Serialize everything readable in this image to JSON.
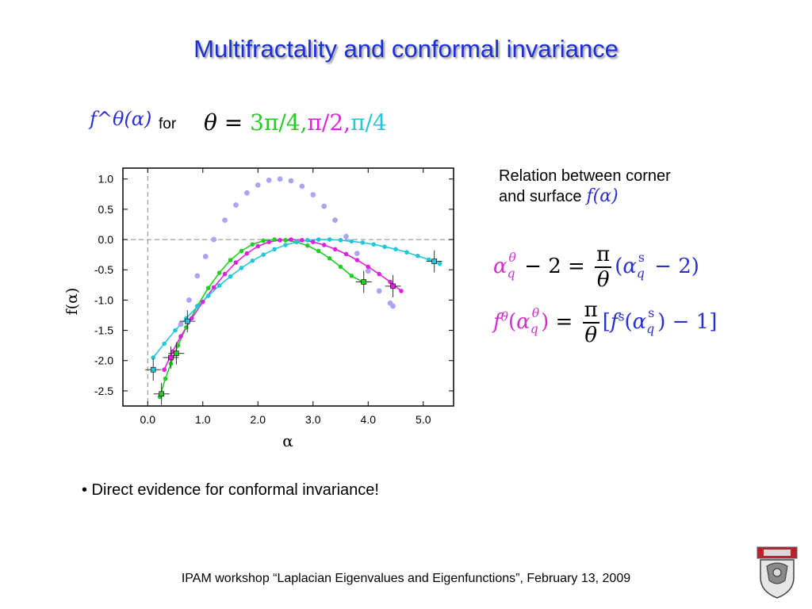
{
  "slide": {
    "title": "Multifractality and conformal invariance",
    "f_theta_alpha": "f^θ(α)",
    "for_label": "for",
    "theta_prefix": "θ = ",
    "theta_values": [
      "3π/4,",
      "π/2,",
      "π/4"
    ],
    "theta_colors": [
      "#22cc22",
      "#dd22dd",
      "#22c6d9"
    ],
    "relation_line1": "Relation between corner",
    "relation_line2": "and surface",
    "relation_f_alpha": "f(α)",
    "bullet": "• Direct evidence for conformal invariance!",
    "footer": "IPAM workshop “Laplacian Eigenvalues and Eigenfunctions”, February 13, 2009"
  },
  "chart_data": {
    "type": "scatter",
    "xlabel": "α",
    "ylabel": "f(α)",
    "xlim": [
      -0.45,
      5.55
    ],
    "ylim": [
      -2.75,
      1.18
    ],
    "x_ticks": [
      "0.0",
      "1.0",
      "2.0",
      "3.0",
      "4.0",
      "5.0"
    ],
    "y_ticks": [
      "1.0",
      "0.5",
      "0.0",
      "-0.5",
      "-1.0",
      "-1.5",
      "-2.0",
      "-2.5"
    ],
    "reference_lines": {
      "y": 0.0,
      "x": 0.0
    },
    "series": [
      {
        "color": "#a9a6f0",
        "x": [
          0.6,
          0.75,
          0.9,
          1.05,
          1.2,
          1.4,
          1.6,
          1.8,
          2.0,
          2.2,
          2.4,
          2.6,
          2.8,
          3.0,
          3.2,
          3.4,
          3.6,
          3.8,
          4.0,
          4.2,
          4.4,
          4.45
        ],
        "y": [
          -1.4,
          -1.0,
          -0.6,
          -0.28,
          0.0,
          0.32,
          0.57,
          0.77,
          0.9,
          0.98,
          1.0,
          0.97,
          0.88,
          0.74,
          0.55,
          0.32,
          0.05,
          -0.23,
          -0.52,
          -0.85,
          -1.05,
          -1.1
        ]
      },
      {
        "color": "#22cc22",
        "x": [
          0.22,
          0.32,
          0.42,
          0.55,
          0.7,
          0.9,
          1.1,
          1.3,
          1.5,
          1.7,
          1.9,
          2.1,
          2.3,
          2.5,
          2.7,
          2.9,
          3.1,
          3.3,
          3.5,
          3.7,
          3.9
        ],
        "y": [
          -2.6,
          -2.3,
          -2.05,
          -1.75,
          -1.45,
          -1.1,
          -0.8,
          -0.55,
          -0.34,
          -0.19,
          -0.08,
          -0.02,
          0.0,
          -0.01,
          -0.04,
          -0.1,
          -0.19,
          -0.31,
          -0.45,
          -0.6,
          -0.7
        ]
      },
      {
        "color": "#dd22dd",
        "x": [
          0.3,
          0.45,
          0.6,
          0.8,
          1.0,
          1.2,
          1.4,
          1.6,
          1.8,
          2.0,
          2.2,
          2.4,
          2.6,
          2.8,
          3.0,
          3.2,
          3.4,
          3.6,
          3.8,
          4.0,
          4.2,
          4.4,
          4.6
        ],
        "y": [
          -2.15,
          -1.85,
          -1.6,
          -1.3,
          -1.03,
          -0.79,
          -0.57,
          -0.38,
          -0.23,
          -0.11,
          -0.04,
          -0.01,
          0.0,
          -0.01,
          -0.04,
          -0.09,
          -0.16,
          -0.24,
          -0.34,
          -0.45,
          -0.57,
          -0.7,
          -0.85
        ]
      },
      {
        "color": "#22c6d9",
        "x": [
          0.1,
          0.3,
          0.5,
          0.7,
          0.9,
          1.1,
          1.3,
          1.5,
          1.7,
          1.9,
          2.1,
          2.3,
          2.5,
          2.7,
          2.9,
          3.1,
          3.3,
          3.5,
          3.7,
          3.9,
          4.1,
          4.3,
          4.5,
          4.7,
          4.9,
          5.1,
          5.3
        ],
        "y": [
          -1.95,
          -1.72,
          -1.5,
          -1.3,
          -1.11,
          -0.93,
          -0.76,
          -0.61,
          -0.47,
          -0.35,
          -0.25,
          -0.16,
          -0.09,
          -0.04,
          -0.01,
          0.0,
          0.0,
          -0.01,
          -0.03,
          -0.05,
          -0.08,
          -0.12,
          -0.16,
          -0.21,
          -0.27,
          -0.33,
          -0.4
        ]
      }
    ],
    "error_points": [
      {
        "x": 0.1,
        "y": -2.15,
        "color": "#22c6d9"
      },
      {
        "x": 0.25,
        "y": -2.55,
        "color": "#22cc22"
      },
      {
        "x": 0.42,
        "y": -1.95,
        "color": "#dd22dd"
      },
      {
        "x": 0.52,
        "y": -1.88,
        "color": "#22cc22"
      },
      {
        "x": 0.72,
        "y": -1.35,
        "color": "#22c6d9"
      },
      {
        "x": 3.92,
        "y": -0.7,
        "color": "#22cc22"
      },
      {
        "x": 4.45,
        "y": -0.77,
        "color": "#dd22dd"
      },
      {
        "x": 5.2,
        "y": -0.36,
        "color": "#22c6d9"
      }
    ]
  }
}
